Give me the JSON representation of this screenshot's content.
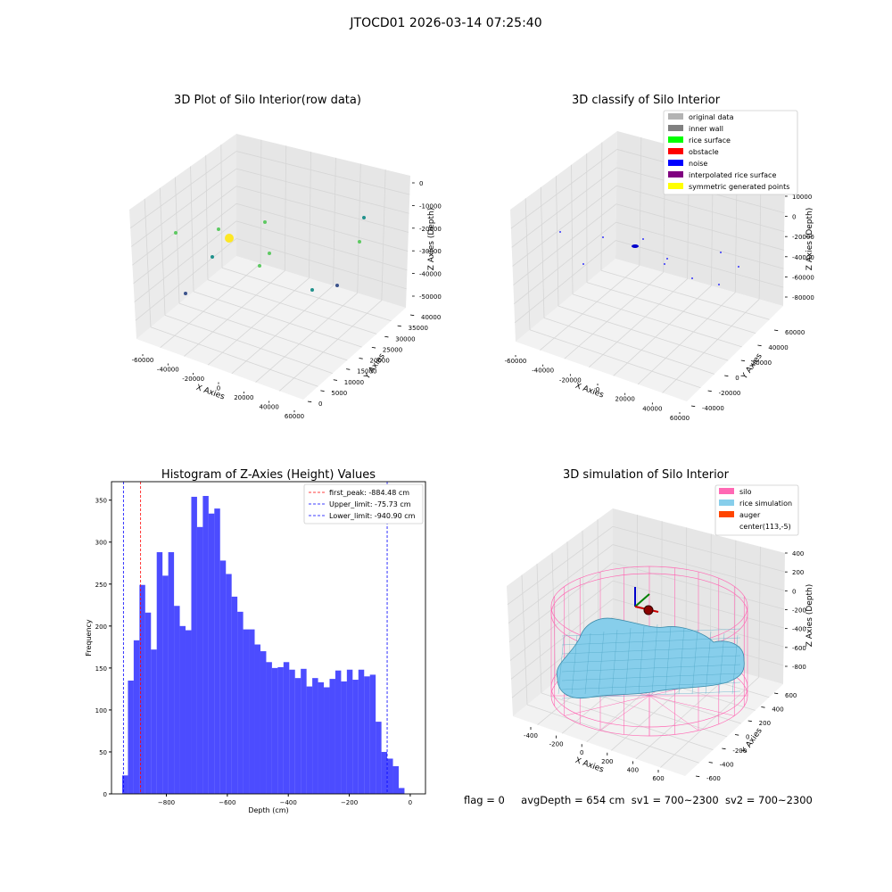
{
  "suptitle": "JTOCD01 2026-03-14 07:25:40",
  "status": {
    "flag": "flag = 0",
    "avg_depth": "avgDepth = 654 cm",
    "sv1": "sv1 = 700~2300",
    "sv2": "sv2 = 700~2300"
  },
  "chart_data": [
    {
      "type": "scatter",
      "title": "3D Plot of Silo Interior(row data)",
      "xlabel": "X Axies",
      "ylabel": "Y Axies",
      "zlabel": "Z Axies (Depth)",
      "x_ticks": [
        "-60000",
        "-40000",
        "-20000",
        "0",
        "20000",
        "40000",
        "60000"
      ],
      "y_ticks": [
        "0",
        "5000",
        "10000",
        "15000",
        "20000",
        "25000",
        "30000",
        "35000",
        "40000"
      ],
      "z_ticks": [
        "0",
        "-10000",
        "-20000",
        "-30000",
        "-40000",
        "-50000"
      ],
      "points_color_scale": [
        "#440154",
        "#3b528b",
        "#21918c",
        "#5ec962",
        "#fde725"
      ]
    },
    {
      "type": "scatter",
      "title": "3D classify of Silo Interior",
      "xlabel": "X Axies",
      "ylabel": "Y Axies",
      "zlabel": "Z Axies (Depth)",
      "x_ticks": [
        "-60000",
        "-40000",
        "-20000",
        "0",
        "20000",
        "40000",
        "60000"
      ],
      "y_ticks": [
        "-40000",
        "-20000",
        "0",
        "20000",
        "40000",
        "60000"
      ],
      "z_ticks": [
        "10000",
        "0",
        "-20000",
        "-40000",
        "-60000",
        "-80000"
      ],
      "legend": [
        {
          "label": "original data",
          "color": "#b3b3b3"
        },
        {
          "label": "inner wall",
          "color": "#808080"
        },
        {
          "label": "rice surface",
          "color": "#00ff00"
        },
        {
          "label": "obstacle",
          "color": "#ff0000"
        },
        {
          "label": "noise",
          "color": "#0000ff"
        },
        {
          "label": "interpolated rice surface",
          "color": "#800080"
        },
        {
          "label": "symmetric generated points",
          "color": "#ffff00"
        }
      ]
    },
    {
      "type": "bar",
      "title": "Histogram of Z-Axies (Height) Values",
      "xlabel": "Depth (cm)",
      "ylabel": "Frequency",
      "xlim": [
        -980,
        50
      ],
      "ylim": [
        0,
        372
      ],
      "x_ticks": [
        -800,
        -600,
        -400,
        -200,
        0
      ],
      "y_ticks": [
        0,
        50,
        100,
        150,
        200,
        250,
        300,
        350
      ],
      "bin_start": -945,
      "bin_width": 18.9,
      "values": [
        22,
        135,
        183,
        249,
        216,
        172,
        288,
        260,
        288,
        224,
        200,
        195,
        354,
        318,
        355,
        334,
        340,
        278,
        262,
        235,
        217,
        196,
        196,
        178,
        170,
        157,
        150,
        151,
        157,
        148,
        138,
        149,
        128,
        138,
        133,
        127,
        137,
        147,
        134,
        148,
        136,
        148,
        140,
        142,
        86,
        50,
        42,
        33,
        7
      ],
      "bar_color": "#0000ff",
      "vlines": [
        {
          "label": "first_peak: -884.48 cm",
          "value": -884.48,
          "color": "#ff0000"
        },
        {
          "label": "Upper_limit: -75.73 cm",
          "value": -75.73,
          "color": "#0000ff"
        },
        {
          "label": "Lower_limit: -940.90 cm",
          "value": -940.9,
          "color": "#0000ff"
        }
      ]
    },
    {
      "type": "area",
      "title": "3D simulation of Silo Interior",
      "xlabel": "X Axies",
      "ylabel": "Y Axies",
      "zlabel": "Z Axies (Depth)",
      "x_ticks": [
        "-400",
        "-200",
        "0",
        "200",
        "400",
        "600"
      ],
      "y_ticks": [
        "-600",
        "-400",
        "-200",
        "0",
        "200",
        "400",
        "600"
      ],
      "z_ticks": [
        "400",
        "200",
        "0",
        "-200",
        "-400",
        "-600",
        "-800"
      ],
      "legend": [
        {
          "label": "silo",
          "color": "#ff69b4"
        },
        {
          "label": "rice simulation",
          "color": "#87ceeb"
        },
        {
          "label": "auger",
          "color": "#ff4500"
        },
        {
          "label": "center(113,-5)",
          "color": ""
        }
      ]
    }
  ]
}
